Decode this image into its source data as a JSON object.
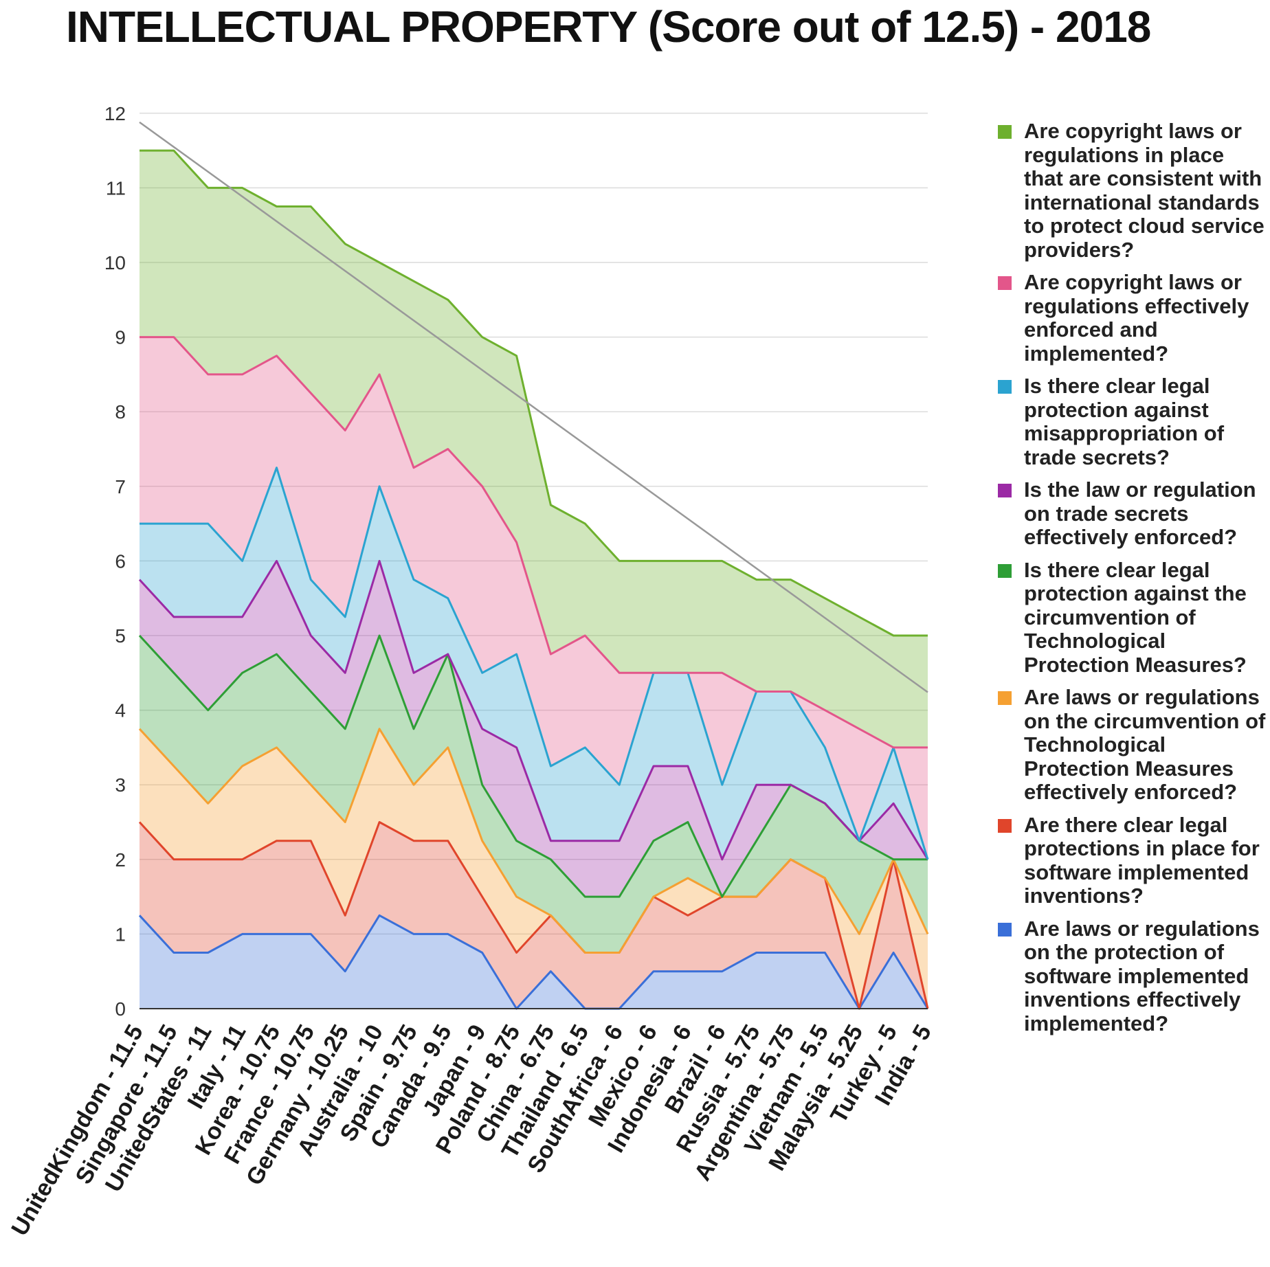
{
  "chart_data": {
    "type": "area",
    "stacked": true,
    "title": "INTELLECTUAL PROPERTY (Score out of 12.5) - 2018",
    "xlabel": "",
    "ylabel": "",
    "ylim": [
      0,
      12
    ],
    "yticks": [
      0,
      1,
      2,
      3,
      4,
      5,
      6,
      7,
      8,
      9,
      10,
      11,
      12
    ],
    "grid": true,
    "legend_position": "right",
    "categories": [
      "UnitedKingdom - 11.5",
      "Singapore - 11.5",
      "UnitedStates - 11",
      "Italy - 11",
      "Korea - 10.75",
      "France - 10.75",
      "Germany - 10.25",
      "Australia - 10",
      "Spain - 9.75",
      "Canada - 9.5",
      "Japan - 9",
      "Poland - 8.75",
      "China - 6.75",
      "Thailand - 6.5",
      "SouthAfrica - 6",
      "Mexico - 6",
      "Indonesia - 6",
      "Brazil - 6",
      "Russia - 5.75",
      "Argentina - 5.75",
      "Vietnam - 5.5",
      "Malaysia - 5.25",
      "Turkey - 5",
      "India - 5"
    ],
    "series": [
      {
        "name": "Are laws or regulations on the protection of software implemented inventions effectively implemented?",
        "color": "#3a6fd8",
        "values": [
          1.25,
          0.75,
          0.75,
          1,
          1,
          1,
          0.5,
          1.25,
          1,
          1,
          0.75,
          0,
          0.5,
          0,
          0,
          0.5,
          0.5,
          0.5,
          0.75,
          0.75,
          0.75,
          0,
          0.75,
          0
        ]
      },
      {
        "name": "Are there clear legal protections in place for software implemented inventions?",
        "color": "#e0452b",
        "values": [
          1.25,
          1.25,
          1.25,
          1,
          1.25,
          1.25,
          0.75,
          1.25,
          1.25,
          1.25,
          0.75,
          0.75,
          0.75,
          0.75,
          0.75,
          1,
          0.75,
          1,
          0.75,
          1.25,
          1,
          0,
          1.25,
          0
        ]
      },
      {
        "name": "Are laws or regulations on the circumvention of Technological Protection Measures effectively enforced?",
        "color": "#f5a032",
        "values": [
          1.25,
          1.25,
          0.75,
          1.25,
          1.25,
          0.75,
          1.25,
          1.25,
          0.75,
          1.25,
          0.75,
          0.75,
          0,
          0,
          0,
          0,
          0.5,
          0,
          0,
          0,
          0,
          1,
          0,
          1
        ]
      },
      {
        "name": "Is there clear legal protection against the circumvention of Technological Protection Measures?",
        "color": "#2e9e36",
        "values": [
          1.25,
          1.25,
          1.25,
          1.25,
          1.25,
          1.25,
          1.25,
          1.25,
          0.75,
          1.25,
          0.75,
          0.75,
          0.75,
          0.75,
          0.75,
          0.75,
          0.75,
          0,
          0.75,
          1,
          1,
          1.25,
          0,
          1
        ]
      },
      {
        "name": "Is the law or regulation on trade secrets effectively enforced?",
        "color": "#9b2aa5",
        "values": [
          0.75,
          0.75,
          1.25,
          0.75,
          1.25,
          0.75,
          0.75,
          1,
          0.75,
          0,
          0.75,
          1.25,
          0.25,
          0.75,
          0.75,
          1,
          0.75,
          0.5,
          0.75,
          0,
          0,
          0,
          0.75,
          0
        ]
      },
      {
        "name": "Is there clear legal protection against misappropriation of trade secrets?",
        "color": "#2ba3d0",
        "values": [
          0.75,
          1.25,
          1.25,
          0.75,
          1.25,
          0.75,
          0.75,
          1,
          1.25,
          0.75,
          0.75,
          1.25,
          1,
          1.25,
          0.75,
          1.25,
          1.25,
          1,
          1.25,
          1.25,
          0.75,
          0,
          0.75,
          0
        ]
      },
      {
        "name": "Are copyright laws or regulations effectively enforced and implemented?",
        "color": "#e3568a",
        "values": [
          2.5,
          2.5,
          2,
          2.5,
          1.5,
          2.5,
          2.5,
          1.5,
          1.5,
          2,
          2.5,
          1.5,
          1.5,
          1.5,
          1.5,
          0,
          0,
          1.5,
          0,
          0,
          0.5,
          1.5,
          0,
          1.5
        ]
      },
      {
        "name": "Are copyright laws or regulations in place that are consistent with international standards to protect cloud service providers?",
        "color": "#6eb02e",
        "values": [
          2.5,
          2.5,
          2.5,
          2.5,
          2,
          2.5,
          2.5,
          1.5,
          2.5,
          2,
          2,
          2.5,
          2,
          1.5,
          1.5,
          1.5,
          1.5,
          1.5,
          1.5,
          1.5,
          1.5,
          1.5,
          1.5,
          1.5
        ]
      }
    ],
    "trendline": {
      "color": "#999999",
      "start": 11.88,
      "end": 4.24
    }
  }
}
